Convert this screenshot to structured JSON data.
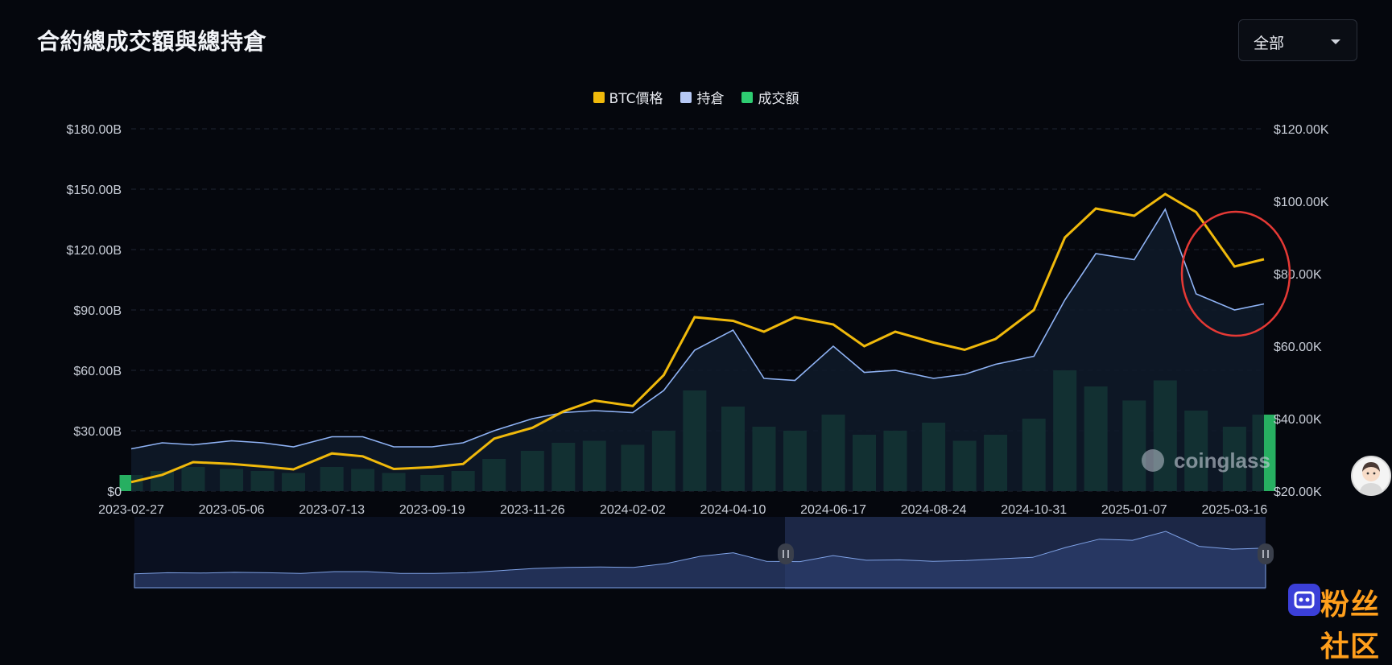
{
  "page": {
    "title": "合約總成交額與總持倉",
    "range_select": {
      "value": "全部"
    }
  },
  "colors": {
    "background": "#05070d",
    "price": "#f0b90b",
    "open_interest": "#8fb3f5",
    "volume": "#2ecc71",
    "grid": "#1f2633",
    "axis_text": "#c9ced8",
    "highlight_circle": "#e53935"
  },
  "chart_data": {
    "type": "line",
    "title": "合約總成交額與總持倉",
    "legend": [
      "BTC價格",
      "持倉",
      "成交額"
    ],
    "x_tick_labels": [
      "2023-02-27",
      "2023-05-06",
      "2023-07-13",
      "2023-09-19",
      "2023-11-26",
      "2024-02-02",
      "2024-04-10",
      "2024-06-17",
      "2024-08-24",
      "2024-10-31",
      "2025-01-07",
      "2025-03-16"
    ],
    "y_left_ticks": [
      "$0",
      "$30.00B",
      "$60.00B",
      "$90.00B",
      "$120.00B",
      "$150.00B",
      "$180.00B"
    ],
    "y_right_ticks": [
      "$20.00K",
      "$40.00K",
      "$60.00K",
      "$80.00K",
      "$100.00K",
      "$120.00K"
    ],
    "y_left_range": [
      0,
      180
    ],
    "y_left_unit": "B USD",
    "y_right_range": [
      20000,
      120000
    ],
    "grid": true,
    "legend_position": "top-center",
    "x": [
      "2023-02-27",
      "2023-03-20",
      "2023-04-10",
      "2023-05-06",
      "2023-05-27",
      "2023-06-17",
      "2023-07-13",
      "2023-08-03",
      "2023-08-24",
      "2023-09-19",
      "2023-10-10",
      "2023-10-31",
      "2023-11-26",
      "2023-12-17",
      "2024-01-07",
      "2024-02-02",
      "2024-02-23",
      "2024-03-15",
      "2024-04-10",
      "2024-05-01",
      "2024-05-22",
      "2024-06-17",
      "2024-07-08",
      "2024-07-29",
      "2024-08-24",
      "2024-09-14",
      "2024-10-05",
      "2024-10-31",
      "2024-11-21",
      "2024-12-12",
      "2025-01-07",
      "2025-01-28",
      "2025-02-18",
      "2025-03-16",
      "2025-04-05"
    ],
    "series": [
      {
        "name": "BTC價格",
        "axis": "right",
        "values": [
          22500,
          24500,
          28000,
          27500,
          26800,
          26000,
          30400,
          29600,
          26100,
          26600,
          27500,
          34500,
          37500,
          42000,
          45000,
          43500,
          52000,
          68000,
          67000,
          64000,
          68000,
          66000,
          60000,
          64000,
          61000,
          59000,
          62000,
          70000,
          90000,
          98000,
          96000,
          102000,
          97000,
          82000,
          84000
        ]
      },
      {
        "name": "持倉",
        "axis": "left",
        "values": [
          21,
          24,
          23,
          25,
          24,
          22,
          27,
          27,
          22,
          22,
          24,
          30,
          36,
          39,
          40,
          39,
          50,
          70,
          80,
          56,
          55,
          72,
          59,
          60,
          56,
          58,
          63,
          67,
          95,
          118,
          115,
          140,
          98,
          90,
          93
        ]
      },
      {
        "name": "成交額",
        "axis": "left",
        "type": "bar",
        "values": [
          8,
          10,
          12,
          11,
          10,
          9,
          12,
          11,
          9,
          8,
          10,
          16,
          20,
          24,
          25,
          23,
          30,
          50,
          42,
          32,
          30,
          38,
          28,
          30,
          34,
          25,
          28,
          36,
          60,
          52,
          45,
          55,
          40,
          32,
          38
        ]
      }
    ]
  },
  "watermark": {
    "brand": "coinglass",
    "site": "粉丝社区"
  }
}
